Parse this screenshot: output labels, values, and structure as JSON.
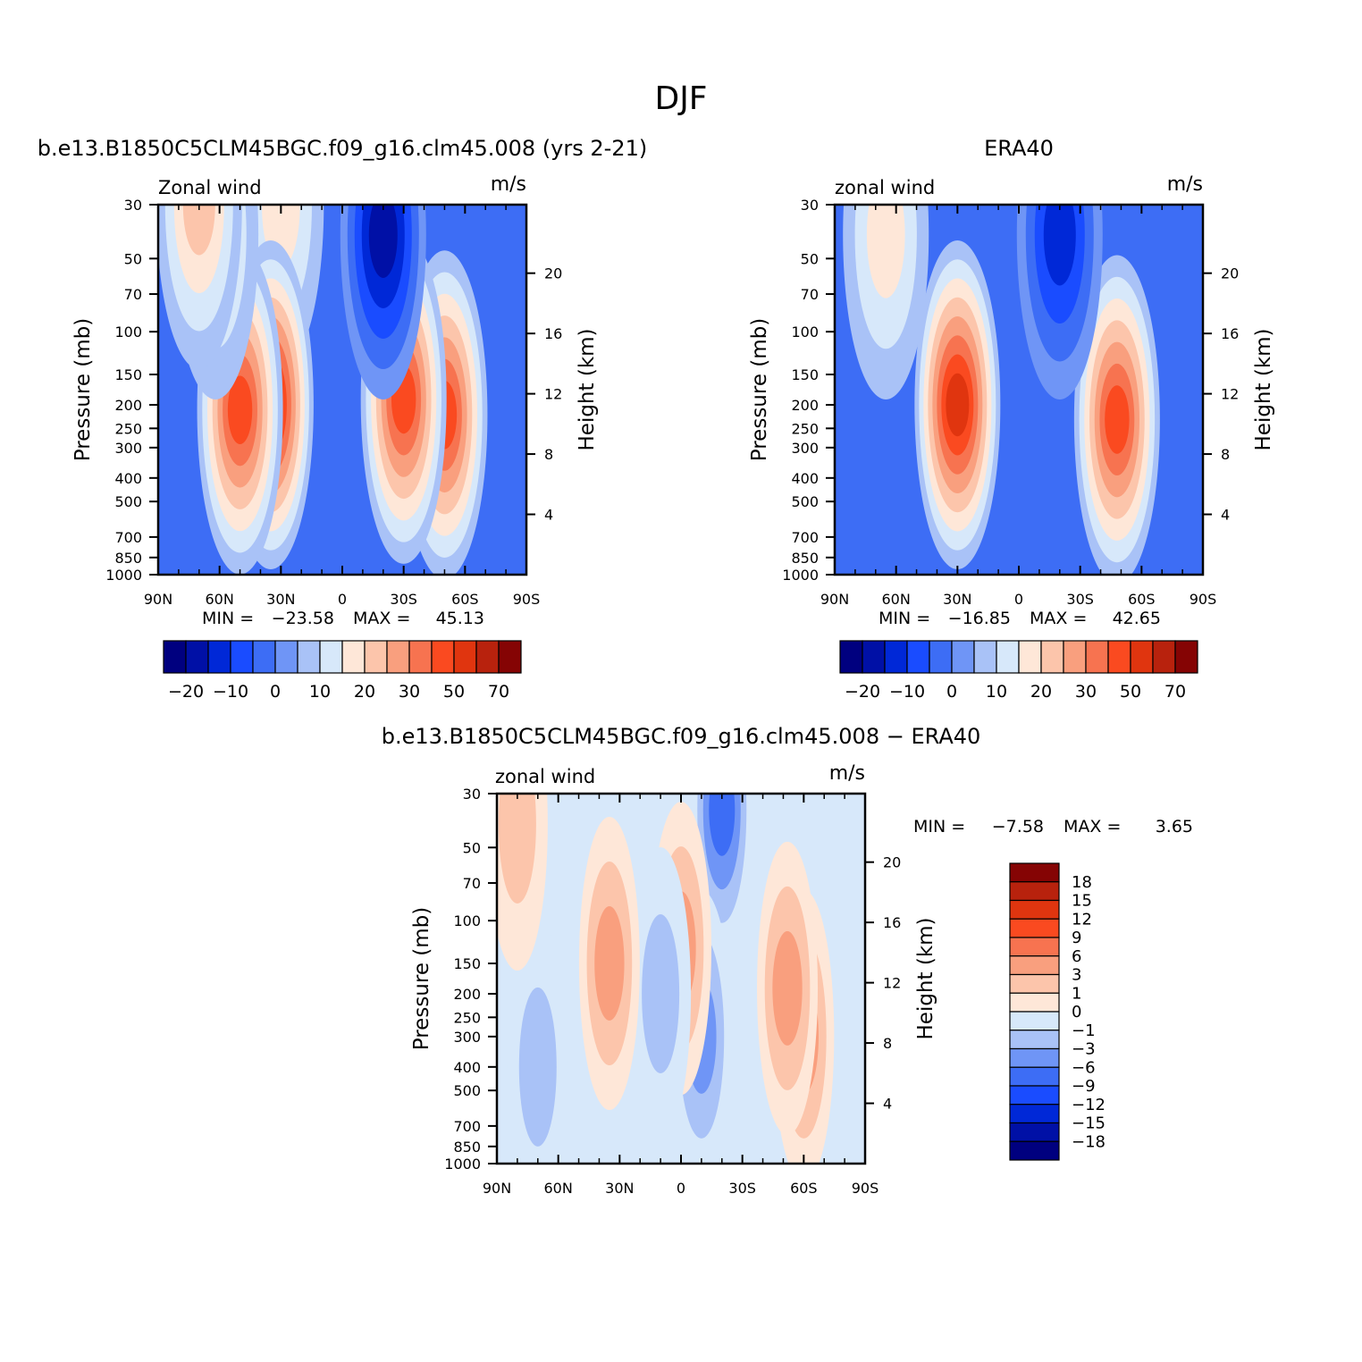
{
  "figure": {
    "title": "DJF"
  },
  "chart_data": [
    {
      "id": "model",
      "type": "heatmap",
      "title": "b.e13.B1850C5CLM45BGC.f09_g16.clm45.008 (yrs 2-21)",
      "left_label": "Zonal wind",
      "units": "m/s",
      "ylabel": "Pressure (mb)",
      "ylabel_right": "Height (km)",
      "x_ticks": [
        "90N",
        "60N",
        "30N",
        "0",
        "30S",
        "60S",
        "90S"
      ],
      "y_ticks": [
        "30",
        "50",
        "70",
        "100",
        "150",
        "200",
        "250",
        "300",
        "400",
        "500",
        "700",
        "850",
        "1000"
      ],
      "y_right_ticks": [
        "20",
        "16",
        "12",
        "8",
        "4"
      ],
      "min_label": "MIN =",
      "min_value": "−23.58",
      "max_label": "MAX =",
      "max_value": "45.13",
      "colorbar_labels": [
        "−20",
        "−10",
        "0",
        "10",
        "20",
        "30",
        "50",
        "70"
      ],
      "blobs": [
        {
          "lat": -50,
          "p": 220,
          "value": 31
        },
        {
          "lat": -30,
          "p": 190,
          "value": 37
        },
        {
          "lat": -20,
          "p": 40,
          "value": -24
        },
        {
          "lat": 30,
          "p": 30,
          "value": 14
        },
        {
          "lat": 35,
          "p": 200,
          "value": 45
        },
        {
          "lat": 50,
          "p": 210,
          "value": 38
        },
        {
          "lat": 62,
          "p": 40,
          "value": 10
        },
        {
          "lat": 70,
          "p": 30,
          "value": 18
        }
      ]
    },
    {
      "id": "obs",
      "type": "heatmap",
      "title": "ERA40",
      "left_label": "zonal wind",
      "units": "m/s",
      "ylabel": "Pressure (mb)",
      "ylabel_right": "Height (km)",
      "x_ticks": [
        "90N",
        "60N",
        "30N",
        "0",
        "30S",
        "60S",
        "90S"
      ],
      "y_ticks": [
        "30",
        "50",
        "70",
        "100",
        "150",
        "200",
        "250",
        "300",
        "400",
        "500",
        "700",
        "850",
        "1000"
      ],
      "y_right_ticks": [
        "20",
        "16",
        "12",
        "8",
        "4"
      ],
      "min_label": "MIN =",
      "min_value": "−16.85",
      "max_label": "MAX =",
      "max_value": "42.65",
      "colorbar_labels": [
        "−20",
        "−10",
        "0",
        "10",
        "20",
        "30",
        "50",
        "70"
      ],
      "blobs": [
        {
          "lat": -48,
          "p": 230,
          "value": 30
        },
        {
          "lat": -20,
          "p": 40,
          "value": -17
        },
        {
          "lat": 30,
          "p": 200,
          "value": 42
        },
        {
          "lat": 65,
          "p": 40,
          "value": 14
        }
      ]
    },
    {
      "id": "diff",
      "type": "heatmap",
      "title": "b.e13.B1850C5CLM45BGC.f09_g16.clm45.008 − ERA40",
      "left_label": "zonal wind",
      "units": "m/s",
      "ylabel": "Pressure (mb)",
      "ylabel_right": "Height (km)",
      "x_ticks": [
        "90N",
        "60N",
        "30N",
        "0",
        "30S",
        "60S",
        "90S"
      ],
      "y_ticks": [
        "30",
        "50",
        "70",
        "100",
        "150",
        "200",
        "250",
        "300",
        "400",
        "500",
        "700",
        "850",
        "1000"
      ],
      "y_right_ticks": [
        "20",
        "16",
        "12",
        "8",
        "4"
      ],
      "min_label": "MIN =",
      "min_value": "−7.58",
      "max_label": "MAX =",
      "max_value": "3.65",
      "colorbar_labels": [
        "18",
        "15",
        "12",
        "9",
        "6",
        "3",
        "1",
        "0",
        "−1",
        "−3",
        "−6",
        "−9",
        "−12",
        "−15",
        "−18"
      ],
      "blobs": [
        {
          "lat": -60,
          "p": 300,
          "value": 3
        },
        {
          "lat": -52,
          "p": 190,
          "value": 4
        },
        {
          "lat": -20,
          "p": 35,
          "value": -7
        },
        {
          "lat": -10,
          "p": 300,
          "value": -4
        },
        {
          "lat": 0,
          "p": 130,
          "value": 3
        },
        {
          "lat": 10,
          "p": 200,
          "value": -3
        },
        {
          "lat": 35,
          "p": 150,
          "value": 4
        },
        {
          "lat": 70,
          "p": 400,
          "value": -3
        },
        {
          "lat": 80,
          "p": 40,
          "value": 2
        }
      ]
    }
  ],
  "colors": {
    "scale": [
      "#00007f",
      "#0010a6",
      "#0028d7",
      "#1a4cff",
      "#3d6df5",
      "#6f95f6",
      "#a9c2f7",
      "#d7e8fa",
      "#fee7d8",
      "#fcc5ab",
      "#f99f7e",
      "#f77350",
      "#fa4a20",
      "#e0350f",
      "#b8220d",
      "#850404"
    ]
  }
}
